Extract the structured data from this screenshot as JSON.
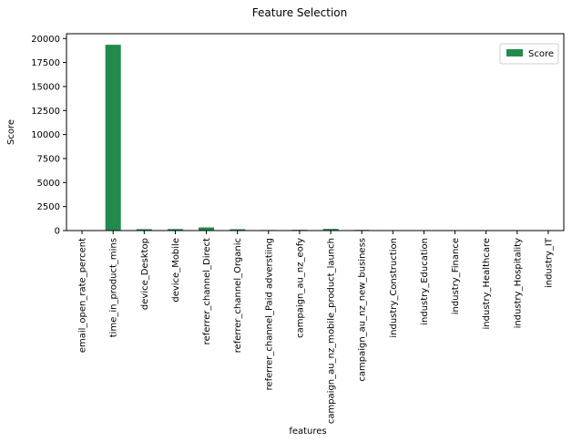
{
  "chart_data": {
    "type": "bar",
    "title": "Feature Selection",
    "xlabel": "features",
    "ylabel": "Score",
    "ylim": [
      0,
      20500
    ],
    "yticks": [
      0,
      2500,
      5000,
      7500,
      10000,
      12500,
      15000,
      17500,
      20000
    ],
    "categories": [
      "email_open_rate_percent",
      "time_in_product_mins",
      "device_Desktop",
      "device_Mobile",
      "referrer_channel_Direct",
      "referrer_channel_Organic",
      "referrer_channel_Paid adverstiing",
      "campaign_au_nz_eofy",
      "campaign_au_nz_mobile_product_launch",
      "campaign_au_nz_new_business",
      "industry_Construction",
      "industry_Education",
      "industry_Finance",
      "industry_Healthcare",
      "industry_Hospitality",
      "industry_IT"
    ],
    "series": [
      {
        "name": "Score",
        "color": "#228b4c",
        "values": [
          5,
          19350,
          150,
          160,
          330,
          140,
          60,
          80,
          175,
          70,
          15,
          5,
          5,
          5,
          5,
          5
        ]
      }
    ],
    "legend": "top-right",
    "grid": false
  }
}
